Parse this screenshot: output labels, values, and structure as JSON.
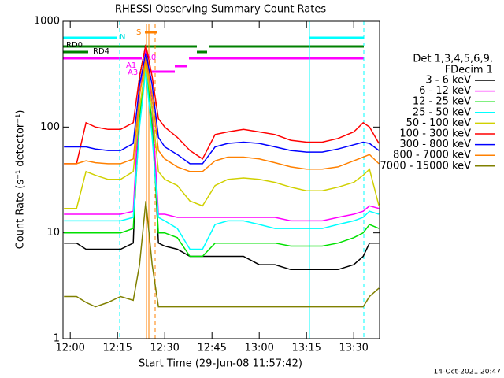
{
  "chart_data": {
    "type": "line",
    "title": "RHESSI Observing Summary Count Rates",
    "x_label": "Start Time (29-Jun-08 11:57:42)",
    "y_label": "Count Rate (s⁻¹ detector⁻¹)",
    "footer": "14-Oct-2021 20:47",
    "legend_title": [
      "Det 1,3,4,5,6,9,",
      "FDecim 1"
    ],
    "annotations": [
      "N",
      "S",
      "RD0",
      "RD4",
      "A1",
      "A0",
      "A3"
    ],
    "yscale": "log",
    "xlim": [
      717.7,
      818.2
    ],
    "xticks": [
      {
        "value": 720,
        "label": "12:00"
      },
      {
        "value": 735,
        "label": "12:15"
      },
      {
        "value": 750,
        "label": "12:30"
      },
      {
        "value": 765,
        "label": "12:45"
      },
      {
        "value": 780,
        "label": "13:00"
      },
      {
        "value": 795,
        "label": "13:15"
      },
      {
        "value": 810,
        "label": "13:30"
      }
    ],
    "ylim": [
      1,
      1000
    ],
    "yticks": [
      1,
      10,
      100,
      1000
    ],
    "x": [
      718,
      722,
      725,
      728,
      732,
      736,
      740,
      742,
      744,
      746,
      748,
      750,
      754,
      758,
      762,
      766,
      770,
      775,
      780,
      785,
      790,
      795,
      800,
      805,
      810,
      813,
      815,
      818
    ],
    "series": [
      {
        "name": "3 - 6 keV",
        "color": "#000000",
        "values": [
          8,
          8,
          7,
          7,
          7,
          7,
          8,
          300,
          600,
          150,
          8,
          7.5,
          7,
          6,
          6,
          6,
          6,
          6,
          5,
          5,
          4.5,
          4.5,
          4.5,
          4.5,
          5,
          6,
          8,
          8
        ]
      },
      {
        "name": "6 - 12 keV",
        "color": "#ff00ff",
        "values": [
          15,
          15,
          15,
          15,
          15,
          15,
          16,
          200,
          550,
          150,
          15,
          15,
          14,
          14,
          14,
          14,
          14,
          14,
          14,
          14,
          13,
          13,
          13,
          14,
          15,
          16,
          18,
          17
        ]
      },
      {
        "name": "12 - 25 keV",
        "color": "#00e000",
        "values": [
          10,
          10,
          10,
          10,
          10,
          10,
          11,
          120,
          450,
          100,
          10,
          10,
          9,
          6,
          6,
          8,
          8,
          8,
          8,
          8,
          7.5,
          7.5,
          7.5,
          8,
          9,
          10,
          12,
          11
        ]
      },
      {
        "name": "25 - 50 keV",
        "color": "#00ffff",
        "values": [
          13,
          13,
          13,
          13,
          13,
          13,
          14,
          100,
          350,
          80,
          14,
          13,
          11,
          7,
          7,
          12,
          13,
          13,
          12,
          11,
          11,
          11,
          11,
          12,
          13,
          14,
          16,
          15
        ]
      },
      {
        "name": "50 - 100 keV",
        "color": "#d0d000",
        "values": [
          17,
          17,
          38,
          35,
          32,
          32,
          38,
          150,
          400,
          150,
          38,
          32,
          28,
          20,
          18,
          28,
          32,
          33,
          32,
          30,
          27,
          25,
          25,
          27,
          30,
          35,
          40,
          18
        ]
      },
      {
        "name": "100 - 300 keV",
        "color": "#ff0000",
        "values": [
          45,
          45,
          110,
          100,
          95,
          95,
          110,
          300,
          600,
          300,
          120,
          100,
          80,
          60,
          50,
          85,
          90,
          95,
          90,
          85,
          75,
          72,
          72,
          78,
          90,
          110,
          100,
          70
        ]
      },
      {
        "name": "300 - 800 keV",
        "color": "#0000ff",
        "values": [
          65,
          65,
          65,
          62,
          60,
          60,
          70,
          250,
          500,
          250,
          80,
          65,
          55,
          45,
          45,
          65,
          70,
          72,
          70,
          65,
          60,
          58,
          58,
          62,
          68,
          72,
          70,
          60
        ]
      },
      {
        "name": "800 - 7000 keV",
        "color": "#ff8000",
        "values": [
          45,
          45,
          48,
          46,
          45,
          45,
          50,
          200,
          450,
          200,
          60,
          50,
          42,
          38,
          38,
          48,
          52,
          52,
          50,
          46,
          42,
          40,
          40,
          42,
          48,
          52,
          55,
          45
        ]
      },
      {
        "name": "7000 - 15000 keV",
        "color": "#808000",
        "values": [
          2.5,
          2.5,
          2.2,
          2,
          2.2,
          2.5,
          2.3,
          5,
          20,
          5,
          2,
          2,
          2,
          2,
          2,
          2,
          2,
          2,
          2,
          2,
          2,
          2,
          2,
          2,
          2,
          2,
          2.5,
          3
        ]
      }
    ]
  }
}
